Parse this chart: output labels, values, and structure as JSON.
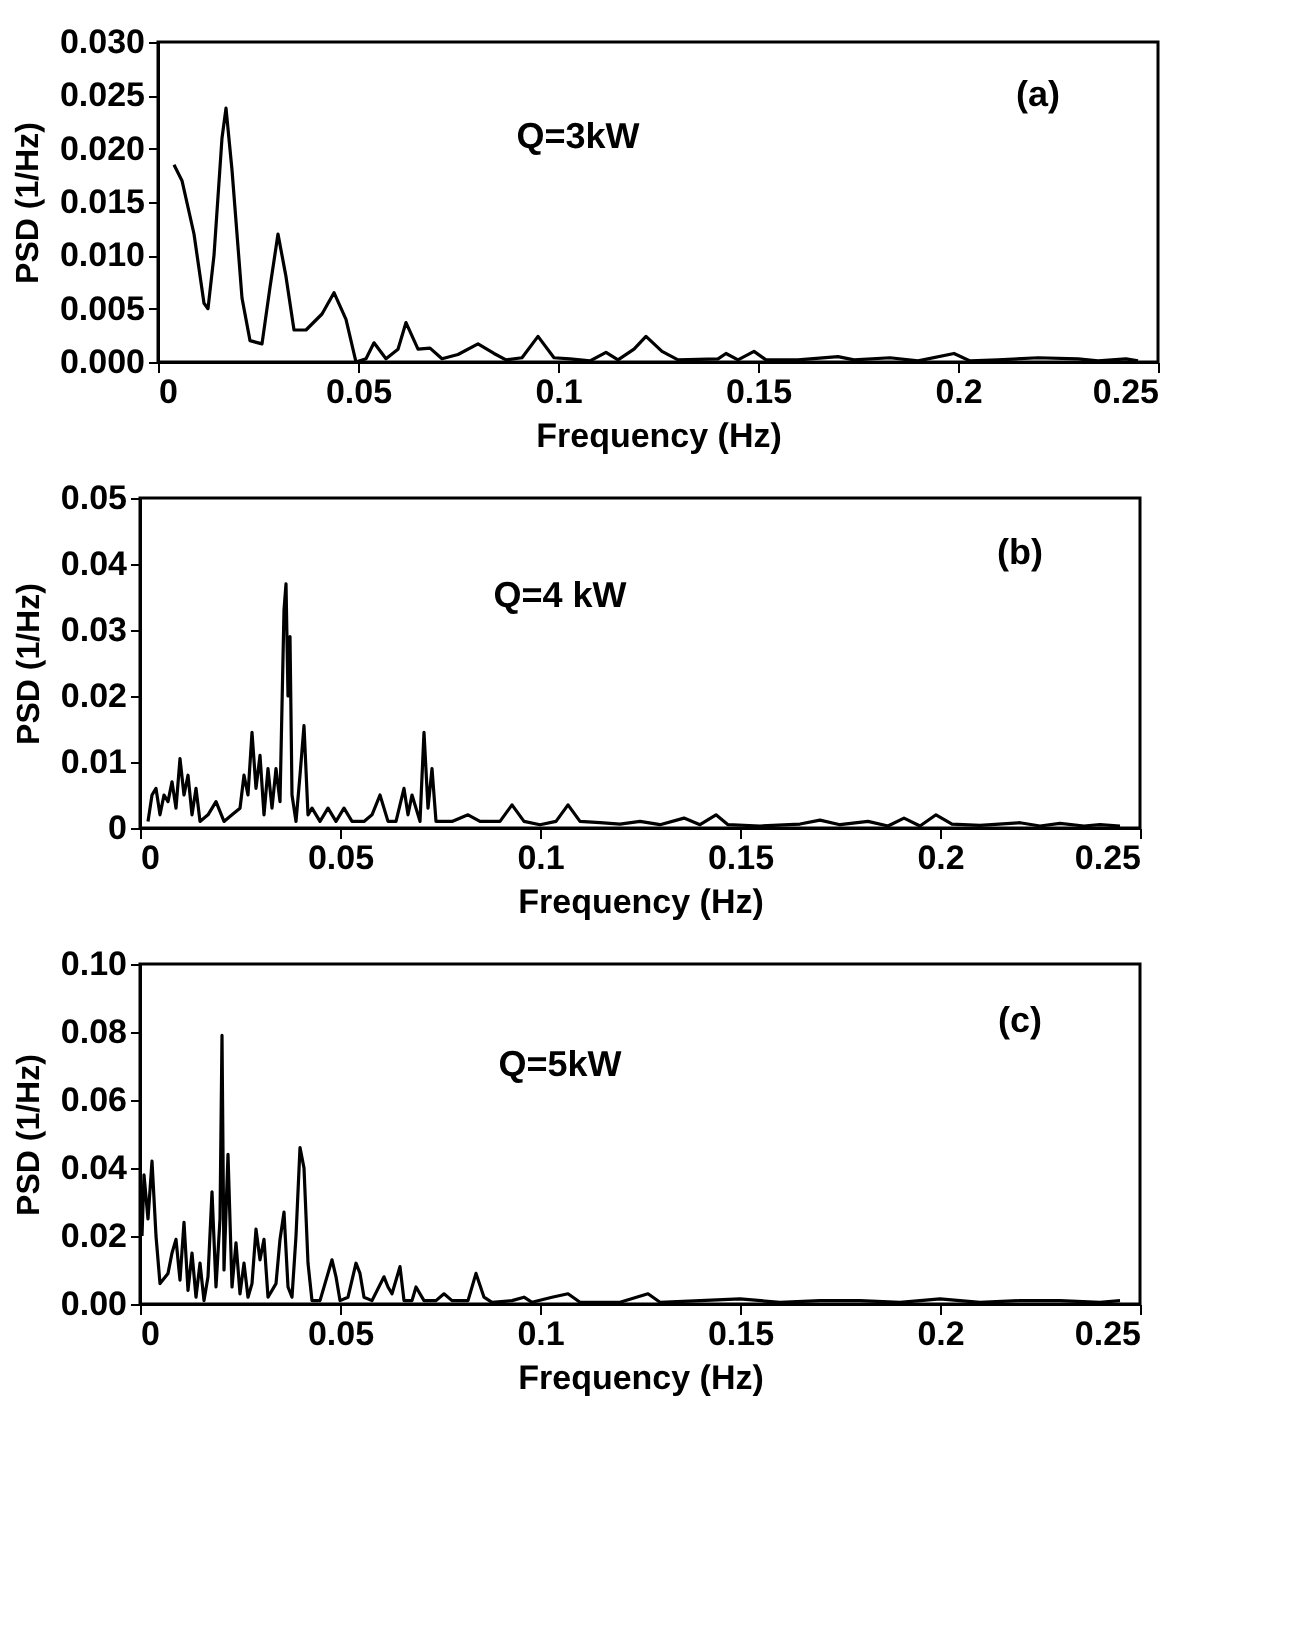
{
  "chart_data": [
    {
      "type": "line",
      "xlabel": "Frequency (Hz)",
      "ylabel": "PSD (1/Hz)",
      "annotations": [
        "Q=3kW",
        "(a)"
      ],
      "xlim": [
        0,
        0.25
      ],
      "ylim": [
        0,
        0.03
      ],
      "xticks": [
        0,
        0.05,
        0.1,
        0.15,
        0.2,
        0.25
      ],
      "yticks": [
        {
          "value": 0,
          "label": "0.000"
        },
        {
          "value": 0.005,
          "label": "0.005"
        },
        {
          "value": 0.01,
          "label": "0.010"
        },
        {
          "value": 0.015,
          "label": "0.015"
        },
        {
          "value": 0.02,
          "label": "0.020"
        },
        {
          "value": 0.025,
          "label": "0.025"
        },
        {
          "value": 0.03,
          "label": "0.030"
        }
      ],
      "x": [
        0.004,
        0.006,
        0.009,
        0.0115,
        0.0125,
        0.014,
        0.016,
        0.017,
        0.0185,
        0.021,
        0.023,
        0.026,
        0.028,
        0.03,
        0.032,
        0.034,
        0.037,
        0.041,
        0.044,
        0.047,
        0.0495,
        0.052,
        0.054,
        0.057,
        0.06,
        0.062,
        0.065,
        0.068,
        0.071,
        0.075,
        0.08,
        0.084,
        0.087,
        0.091,
        0.095,
        0.099,
        0.103,
        0.108,
        0.112,
        0.115,
        0.119,
        0.122,
        0.126,
        0.13,
        0.14,
        0.142,
        0.145,
        0.149,
        0.152,
        0.16,
        0.17,
        0.174,
        0.183,
        0.19,
        0.199,
        0.203,
        0.21,
        0.22,
        0.23,
        0.235,
        0.242,
        0.245
      ],
      "series": [
        {
          "color": "#000000",
          "values": [
            0.0185,
            0.017,
            0.012,
            0.0055,
            0.005,
            0.01,
            0.021,
            0.0238,
            0.018,
            0.006,
            0.002,
            0.0017,
            0.007,
            0.012,
            0.008,
            0.003,
            0.003,
            0.0045,
            0.0065,
            0.004,
            0,
            0.0003,
            0.0018,
            0.0003,
            0.0012,
            0.0037,
            0.0012,
            0.0013,
            0.0003,
            0.0007,
            0.0017,
            0.0008,
            0.0002,
            0.0004,
            0.0024,
            0.0004,
            0.0003,
            0.0001,
            0.0009,
            0.0002,
            0.0012,
            0.0024,
            0.001,
            0.0002,
            0.0003,
            0.0008,
            0.0002,
            0.001,
            0.0002,
            0.0002,
            0.0005,
            0.0002,
            0.0004,
            0.0001,
            0.0008,
            0.0001,
            0.0002,
            0.0004,
            0.0003,
            0.0001,
            0.0003,
            0.0001
          ]
        }
      ]
    },
    {
      "type": "line",
      "xlabel": "Frequency (Hz)",
      "ylabel": "PSD (1/Hz)",
      "annotations": [
        "Q=4 kW",
        "(b)"
      ],
      "xlim": [
        0,
        0.25
      ],
      "ylim": [
        0,
        0.05
      ],
      "xticks": [
        0,
        0.05,
        0.1,
        0.15,
        0.2,
        0.25
      ],
      "yticks": [
        0,
        0.01,
        0.02,
        0.03,
        0.04,
        0.05
      ],
      "x": [
        0.002,
        0.003,
        0.004,
        0.005,
        0.006,
        0.007,
        0.008,
        0.009,
        0.01,
        0.011,
        0.012,
        0.013,
        0.014,
        0.015,
        0.017,
        0.019,
        0.021,
        0.023,
        0.025,
        0.026,
        0.027,
        0.028,
        0.029,
        0.03,
        0.031,
        0.032,
        0.033,
        0.034,
        0.035,
        0.036,
        0.0365,
        0.037,
        0.0375,
        0.038,
        0.039,
        0.04,
        0.041,
        0.042,
        0.043,
        0.045,
        0.047,
        0.049,
        0.051,
        0.053,
        0.056,
        0.058,
        0.06,
        0.062,
        0.064,
        0.066,
        0.067,
        0.068,
        0.07,
        0.071,
        0.072,
        0.073,
        0.074,
        0.078,
        0.082,
        0.085,
        0.09,
        0.093,
        0.096,
        0.1,
        0.104,
        0.107,
        0.11,
        0.115,
        0.12,
        0.125,
        0.13,
        0.136,
        0.14,
        0.144,
        0.147,
        0.155,
        0.165,
        0.17,
        0.175,
        0.182,
        0.187,
        0.191,
        0.195,
        0.199,
        0.203,
        0.21,
        0.22,
        0.225,
        0.23,
        0.236,
        0.24,
        0.245
      ],
      "series": [
        {
          "color": "#000000",
          "values": [
            0.001,
            0.005,
            0.006,
            0.002,
            0.005,
            0.004,
            0.007,
            0.003,
            0.0105,
            0.005,
            0.008,
            0.002,
            0.006,
            0.001,
            0.002,
            0.004,
            0.001,
            0.002,
            0.003,
            0.008,
            0.005,
            0.0145,
            0.006,
            0.011,
            0.002,
            0.009,
            0.003,
            0.009,
            0.004,
            0.033,
            0.037,
            0.02,
            0.029,
            0.005,
            0.001,
            0.008,
            0.0155,
            0.002,
            0.003,
            0.001,
            0.003,
            0.001,
            0.003,
            0.001,
            0.001,
            0.002,
            0.005,
            0.001,
            0.001,
            0.006,
            0.002,
            0.005,
            0.001,
            0.0145,
            0.003,
            0.009,
            0.001,
            0.001,
            0.002,
            0.001,
            0.001,
            0.0035,
            0.001,
            0.0005,
            0.001,
            0.0035,
            0.001,
            0.0008,
            0.0006,
            0.001,
            0.0005,
            0.0015,
            0.0005,
            0.002,
            0.0005,
            0.0003,
            0.0006,
            0.0012,
            0.0005,
            0.001,
            0.0003,
            0.0015,
            0.0003,
            0.002,
            0.0006,
            0.0004,
            0.0008,
            0.0003,
            0.0007,
            0.0003,
            0.0005,
            0.0003
          ]
        }
      ]
    },
    {
      "type": "line",
      "xlabel": "Frequency (Hz)",
      "ylabel": "PSD (1/Hz)",
      "annotations": [
        "Q=5kW",
        "(c)"
      ],
      "xlim": [
        0,
        0.25
      ],
      "ylim": [
        0,
        0.1
      ],
      "xticks": [
        0,
        0.05,
        0.1,
        0.15,
        0.2,
        0.25
      ],
      "yticks": [
        {
          "value": 0,
          "label": "0.00"
        },
        {
          "value": 0.02,
          "label": "0.02"
        },
        {
          "value": 0.04,
          "label": "0.04"
        },
        {
          "value": 0.06,
          "label": "0.06"
        },
        {
          "value": 0.08,
          "label": "0.08"
        },
        {
          "value": 0.1,
          "label": "0.10"
        }
      ],
      "x": [
        0.0005,
        0.001,
        0.002,
        0.003,
        0.004,
        0.005,
        0.007,
        0.008,
        0.009,
        0.01,
        0.011,
        0.012,
        0.013,
        0.014,
        0.015,
        0.016,
        0.017,
        0.018,
        0.019,
        0.02,
        0.0205,
        0.021,
        0.022,
        0.023,
        0.024,
        0.025,
        0.026,
        0.027,
        0.028,
        0.029,
        0.03,
        0.031,
        0.032,
        0.034,
        0.035,
        0.036,
        0.037,
        0.038,
        0.039,
        0.04,
        0.041,
        0.042,
        0.043,
        0.045,
        0.047,
        0.048,
        0.049,
        0.05,
        0.052,
        0.054,
        0.055,
        0.056,
        0.058,
        0.061,
        0.062,
        0.063,
        0.065,
        0.066,
        0.068,
        0.069,
        0.071,
        0.074,
        0.076,
        0.078,
        0.082,
        0.084,
        0.086,
        0.088,
        0.093,
        0.096,
        0.098,
        0.103,
        0.107,
        0.11,
        0.12,
        0.127,
        0.13,
        0.14,
        0.15,
        0.16,
        0.17,
        0.18,
        0.19,
        0.2,
        0.21,
        0.22,
        0.23,
        0.24,
        0.245
      ],
      "series": [
        {
          "color": "#000000",
          "values": [
            0.02,
            0.038,
            0.025,
            0.042,
            0.02,
            0.006,
            0.009,
            0.015,
            0.019,
            0.007,
            0.024,
            0.004,
            0.015,
            0.002,
            0.012,
            0.001,
            0.008,
            0.033,
            0.005,
            0.025,
            0.079,
            0.01,
            0.044,
            0.005,
            0.018,
            0.003,
            0.012,
            0.002,
            0.006,
            0.022,
            0.013,
            0.019,
            0.002,
            0.006,
            0.019,
            0.027,
            0.005,
            0.002,
            0.02,
            0.046,
            0.04,
            0.012,
            0.001,
            0.001,
            0.009,
            0.013,
            0.008,
            0.001,
            0.002,
            0.012,
            0.009,
            0.002,
            0.001,
            0.008,
            0.005,
            0.003,
            0.011,
            0.001,
            0.001,
            0.005,
            0.001,
            0.001,
            0.003,
            0.001,
            0.001,
            0.009,
            0.002,
            0.0005,
            0.001,
            0.002,
            0.0005,
            0.002,
            0.003,
            0.0005,
            0.0005,
            0.003,
            0.0005,
            0.001,
            0.0015,
            0.0005,
            0.001,
            0.001,
            0.0005,
            0.0015,
            0.0005,
            0.001,
            0.001,
            0.0005,
            0.001
          ]
        }
      ]
    }
  ]
}
